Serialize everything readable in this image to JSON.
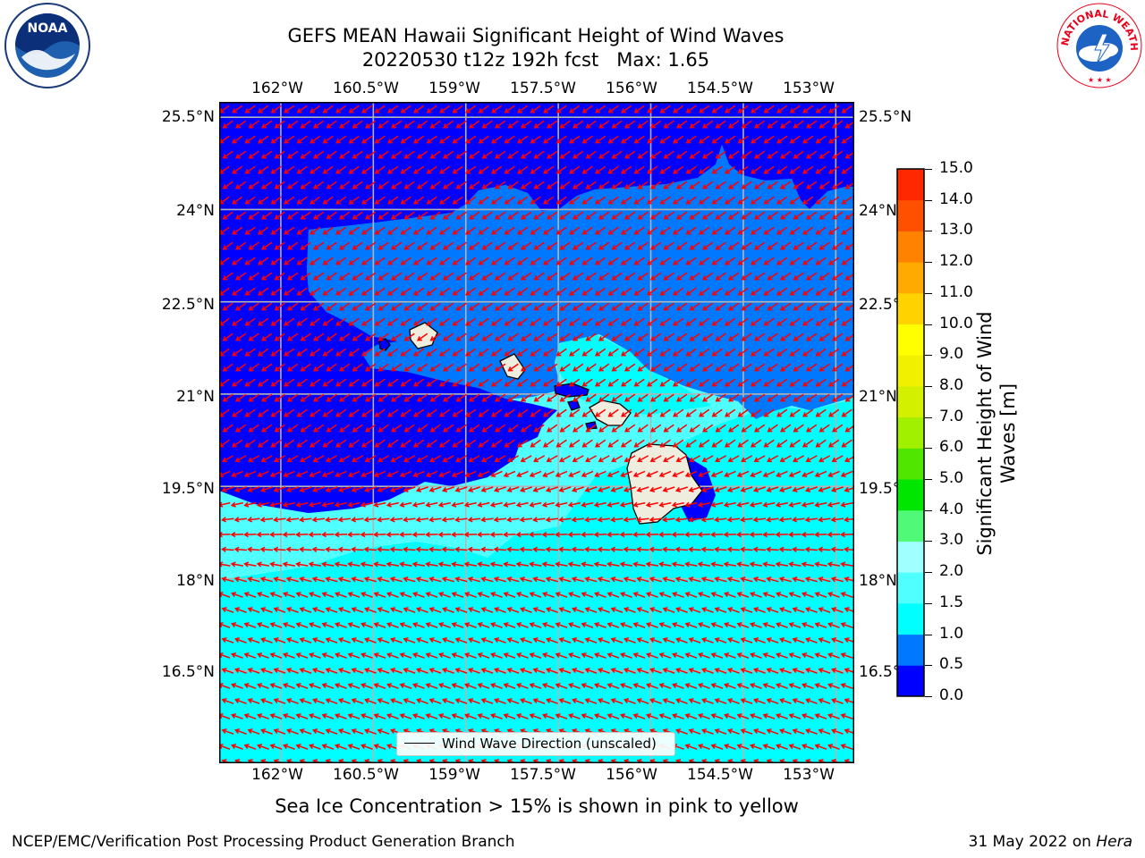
{
  "title": {
    "line1": "GEFS MEAN Hawaii Significant Height of Wind Waves",
    "line2": "20220530 t12z 192h fcst   Max: 1.65"
  },
  "logos": {
    "left": {
      "name": "NOAA",
      "ring_text": "NATIONAL OCEANIC AND ATMOSPHERIC ADMINISTRATION · U.S. DEPARTMENT OF COMMERCE"
    },
    "right": {
      "name": "NATIONAL WEATHER SERVICE"
    }
  },
  "map": {
    "lon_ticks": [
      "162°W",
      "160.5°W",
      "159°W",
      "157.5°W",
      "156°W",
      "154.5°W",
      "153°W"
    ],
    "lat_ticks": [
      "25.5°N",
      "24°N",
      "22.5°N",
      "21°N",
      "19.5°N",
      "18°N",
      "16.5°N"
    ],
    "lon_range": [
      -163.0,
      -152.7
    ],
    "lat_range": [
      15.0,
      25.75
    ],
    "legend_label": "Wind Wave Direction (unscaled)",
    "arrow_color": "#ff0000",
    "land_color": "#efedde",
    "grid_color": "#b4b4b4"
  },
  "colorbar": {
    "label_line1": "Significant Height of Wind",
    "label_line2": "Waves [m]",
    "tick_labels": [
      "0.0",
      "0.5",
      "1.0",
      "1.5",
      "2.0",
      "3.0",
      "4.0",
      "5.0",
      "6.0",
      "7.0",
      "8.0",
      "9.0",
      "10.0",
      "11.0",
      "12.0",
      "13.0",
      "14.0",
      "15.0"
    ],
    "colors": [
      "#0000ff",
      "#0078ff",
      "#00ffff",
      "#50ffff",
      "#a0ffff",
      "#50fa78",
      "#00e600",
      "#50e600",
      "#a0f000",
      "#d2f000",
      "#f0f000",
      "#ffff00",
      "#ffd200",
      "#ffaa00",
      "#ff8200",
      "#ff5000",
      "#ff2800",
      "#ff0000"
    ]
  },
  "footnote": "Sea Ice Concentration > 15% is shown in pink to yellow",
  "credit_left": "NCEP/EMC/Verification Post Processing Product Generation Branch",
  "credit_right_prefix": "31 May 2022 on",
  "credit_right_host": "Hera"
}
